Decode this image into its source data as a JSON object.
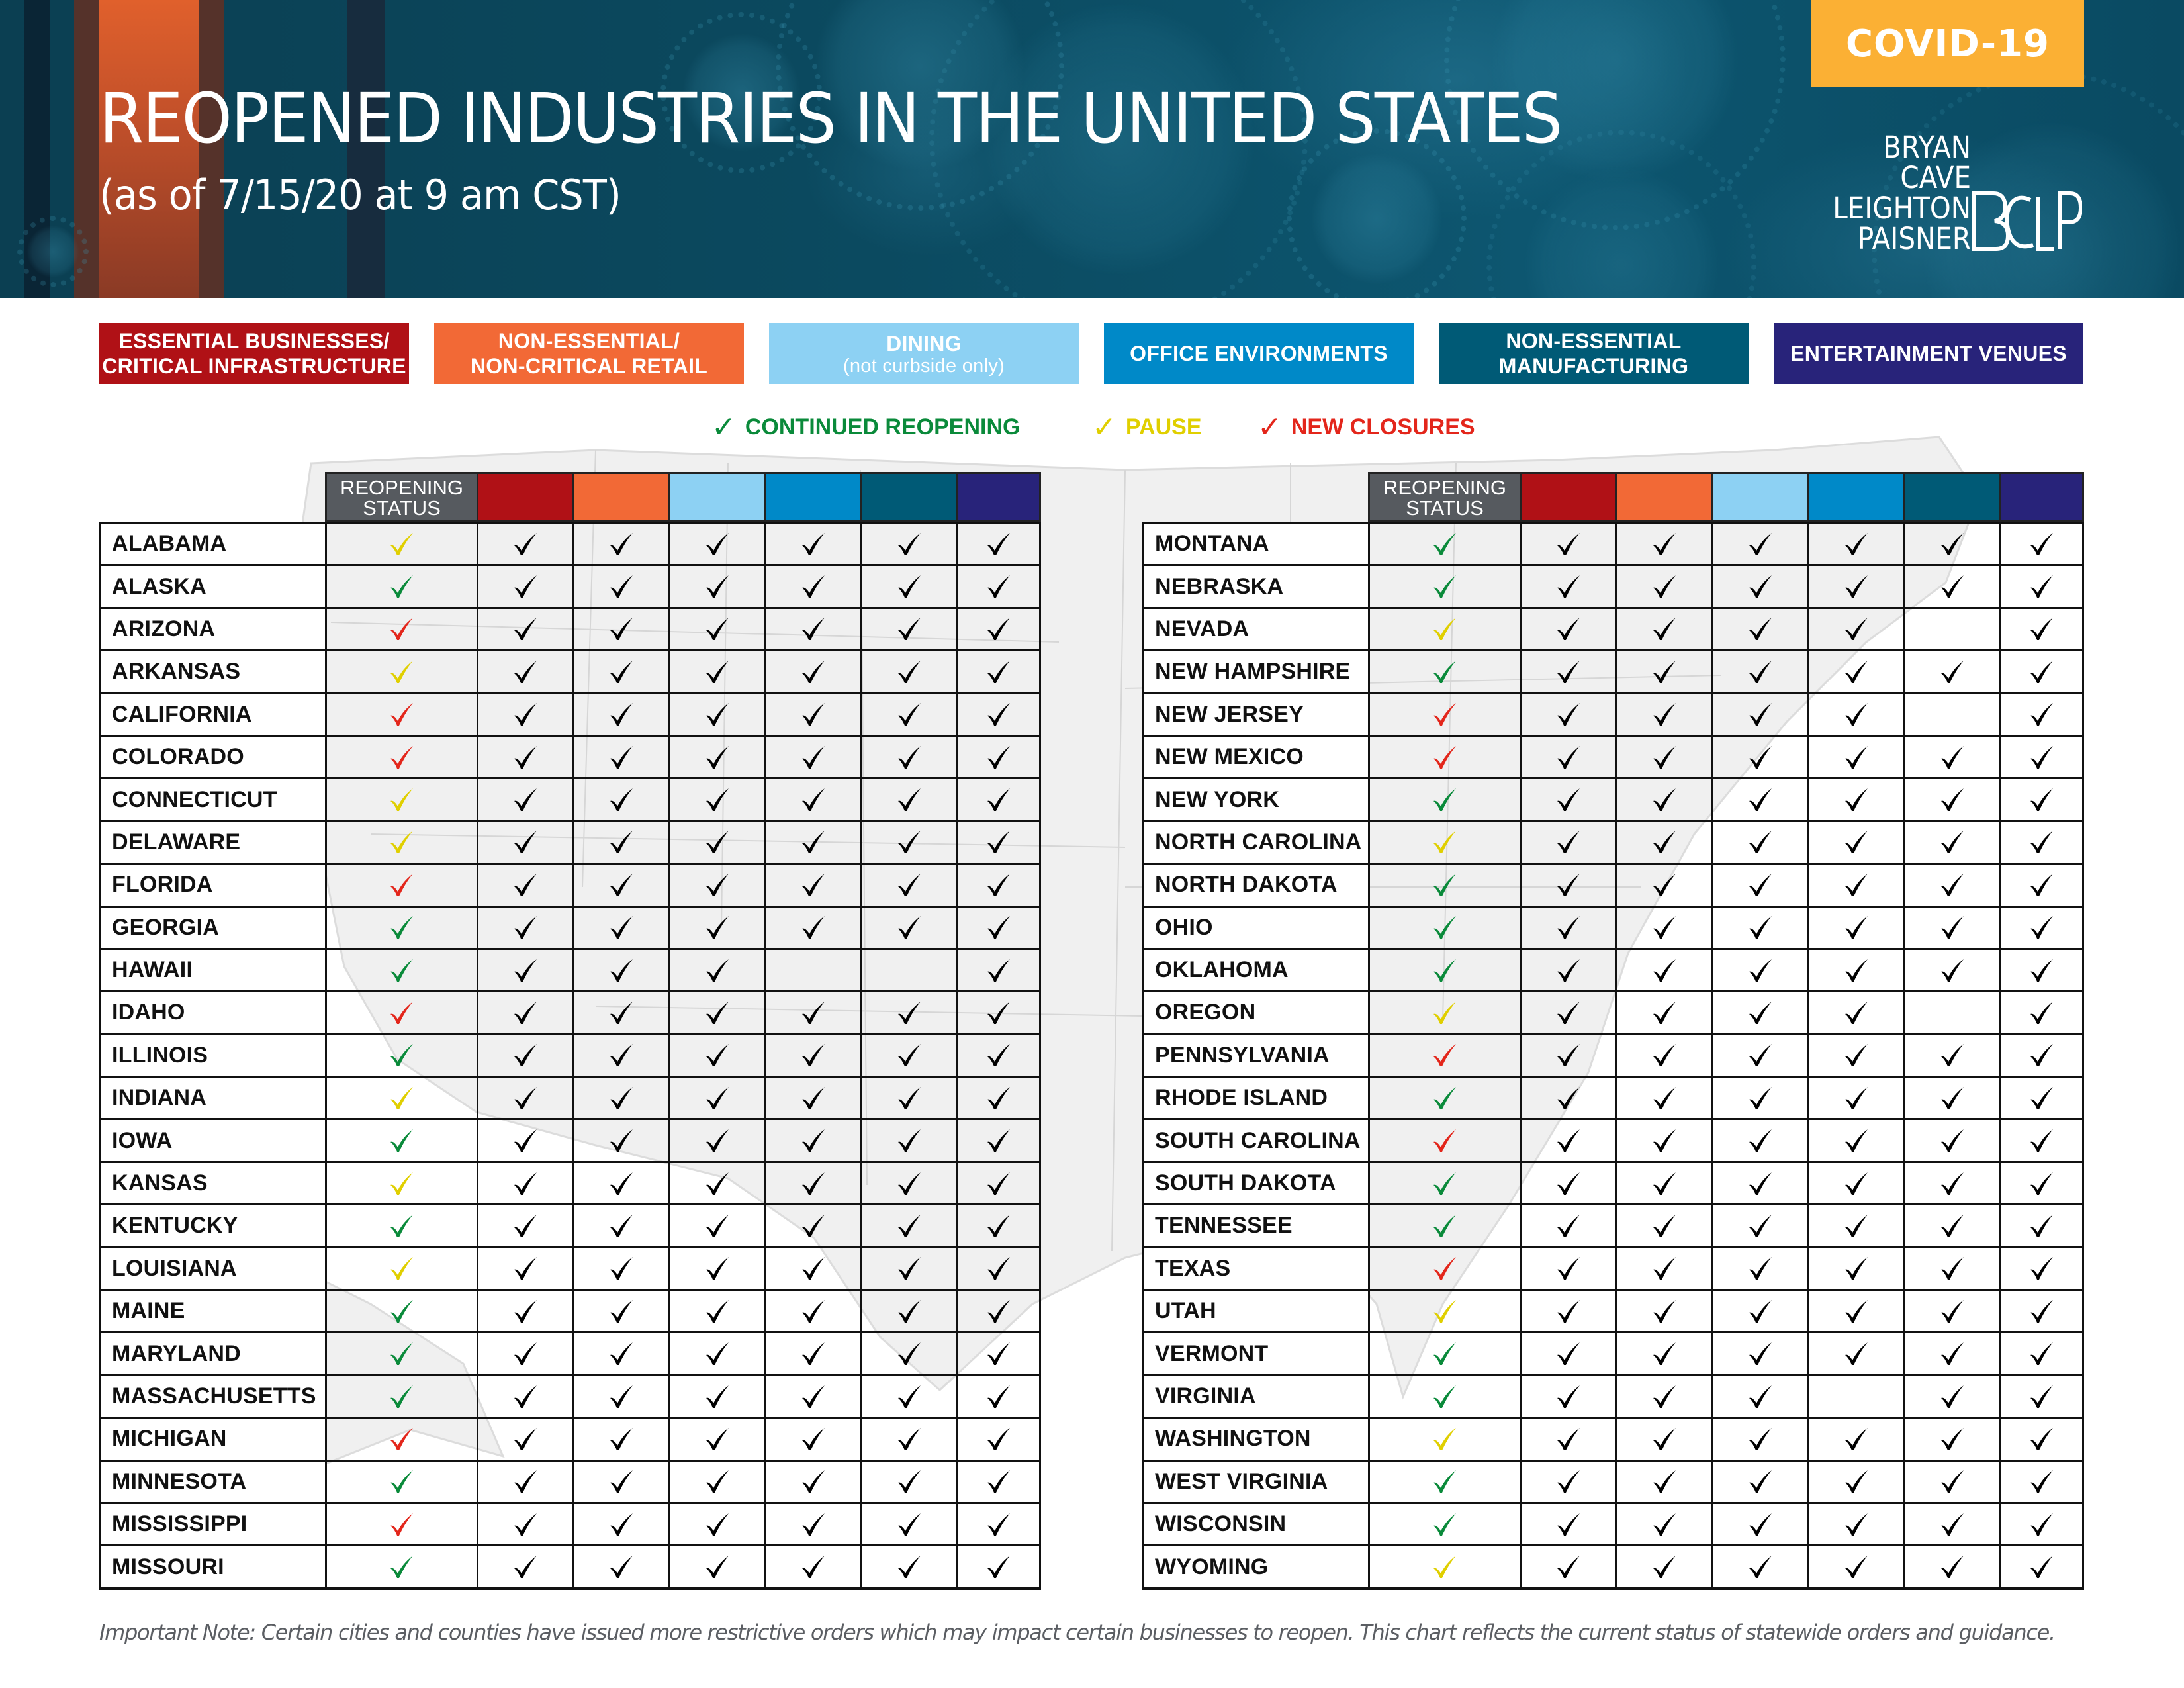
{
  "header": {
    "title": "REOPENED INDUSTRIES IN THE UNITED STATES",
    "subtitle": "(as of 7/15/20 at 9 am CST)",
    "badge": "COVID-19",
    "logo": {
      "lines": [
        "BRYAN",
        "CAVE",
        "LEIGHTON",
        "PAISNER"
      ],
      "monogram": "BCLP"
    }
  },
  "colors": {
    "banner": "#0b4a60",
    "badge": "#fbb034",
    "status_header": "#565a5f",
    "status_green": "#0a8a3a",
    "status_yellow": "#e0cf00",
    "status_red": "#e3261b",
    "check_black": "#000000"
  },
  "categories": [
    {
      "key": "essential",
      "line1": "ESSENTIAL BUSINESSES/",
      "line2": "CRITICAL INFRASTRUCTURE",
      "color": "#b01116"
    },
    {
      "key": "retail",
      "line1": "NON-ESSENTIAL/",
      "line2": "NON-CRITICAL RETAIL",
      "color": "#f26936"
    },
    {
      "key": "dining",
      "line1": "DINING",
      "line2": "(not curbside only)",
      "color": "#8dd1f3"
    },
    {
      "key": "office",
      "line1": "OFFICE ENVIRONMENTS",
      "line2": "",
      "color": "#0089c8"
    },
    {
      "key": "manufacturing",
      "line1": "NON-ESSENTIAL",
      "line2": "MANUFACTURING",
      "color": "#005a76"
    },
    {
      "key": "entertainment",
      "line1": "ENTERTAINMENT VENUES",
      "line2": "",
      "color": "#28237a"
    }
  ],
  "status_legend": [
    {
      "key": "green",
      "label": "CONTINUED REOPENING",
      "color": "#0a8a3a"
    },
    {
      "key": "yellow",
      "label": "PAUSE",
      "color": "#e0cf00"
    },
    {
      "key": "red",
      "label": "NEW CLOSURES",
      "color": "#e3261b"
    }
  ],
  "table": {
    "status_header": "REOPENING STATUS",
    "columns": [
      "essential",
      "retail",
      "dining",
      "office",
      "manufacturing",
      "entertainment"
    ],
    "left": [
      {
        "state": "ALABAMA",
        "status": "yellow",
        "cells": [
          1,
          1,
          1,
          1,
          1,
          1
        ]
      },
      {
        "state": "ALASKA",
        "status": "green",
        "cells": [
          1,
          1,
          1,
          1,
          1,
          1
        ]
      },
      {
        "state": "ARIZONA",
        "status": "red",
        "cells": [
          1,
          1,
          1,
          1,
          1,
          1
        ]
      },
      {
        "state": "ARKANSAS",
        "status": "yellow",
        "cells": [
          1,
          1,
          1,
          1,
          1,
          1
        ]
      },
      {
        "state": "CALIFORNIA",
        "status": "red",
        "cells": [
          1,
          1,
          1,
          1,
          1,
          1
        ]
      },
      {
        "state": "COLORADO",
        "status": "red",
        "cells": [
          1,
          1,
          1,
          1,
          1,
          1
        ]
      },
      {
        "state": "CONNECTICUT",
        "status": "yellow",
        "cells": [
          1,
          1,
          1,
          1,
          1,
          1
        ]
      },
      {
        "state": "DELAWARE",
        "status": "yellow",
        "cells": [
          1,
          1,
          1,
          1,
          1,
          1
        ]
      },
      {
        "state": "FLORIDA",
        "status": "red",
        "cells": [
          1,
          1,
          1,
          1,
          1,
          1
        ]
      },
      {
        "state": "GEORGIA",
        "status": "green",
        "cells": [
          1,
          1,
          1,
          1,
          1,
          1
        ]
      },
      {
        "state": "HAWAII",
        "status": "green",
        "cells": [
          1,
          1,
          1,
          0,
          0,
          1
        ]
      },
      {
        "state": "IDAHO",
        "status": "red",
        "cells": [
          1,
          1,
          1,
          1,
          1,
          1
        ]
      },
      {
        "state": "ILLINOIS",
        "status": "green",
        "cells": [
          1,
          1,
          1,
          1,
          1,
          1
        ]
      },
      {
        "state": "INDIANA",
        "status": "yellow",
        "cells": [
          1,
          1,
          1,
          1,
          1,
          1
        ]
      },
      {
        "state": "IOWA",
        "status": "green",
        "cells": [
          1,
          1,
          1,
          1,
          1,
          1
        ]
      },
      {
        "state": "KANSAS",
        "status": "yellow",
        "cells": [
          1,
          1,
          1,
          1,
          1,
          1
        ]
      },
      {
        "state": "KENTUCKY",
        "status": "green",
        "cells": [
          1,
          1,
          1,
          1,
          1,
          1
        ]
      },
      {
        "state": "LOUISIANA",
        "status": "yellow",
        "cells": [
          1,
          1,
          1,
          1,
          1,
          1
        ]
      },
      {
        "state": "MAINE",
        "status": "green",
        "cells": [
          1,
          1,
          1,
          1,
          1,
          1
        ]
      },
      {
        "state": "MARYLAND",
        "status": "green",
        "cells": [
          1,
          1,
          1,
          1,
          1,
          1
        ]
      },
      {
        "state": "MASSACHUSETTS",
        "status": "green",
        "cells": [
          1,
          1,
          1,
          1,
          1,
          1
        ]
      },
      {
        "state": "MICHIGAN",
        "status": "red",
        "cells": [
          1,
          1,
          1,
          1,
          1,
          1
        ]
      },
      {
        "state": "MINNESOTA",
        "status": "green",
        "cells": [
          1,
          1,
          1,
          1,
          1,
          1
        ]
      },
      {
        "state": "MISSISSIPPI",
        "status": "red",
        "cells": [
          1,
          1,
          1,
          1,
          1,
          1
        ]
      },
      {
        "state": "MISSOURI",
        "status": "green",
        "cells": [
          1,
          1,
          1,
          1,
          1,
          1
        ]
      }
    ],
    "right": [
      {
        "state": "MONTANA",
        "status": "green",
        "cells": [
          1,
          1,
          1,
          1,
          1,
          1
        ]
      },
      {
        "state": "NEBRASKA",
        "status": "green",
        "cells": [
          1,
          1,
          1,
          1,
          1,
          1
        ]
      },
      {
        "state": "NEVADA",
        "status": "yellow",
        "cells": [
          1,
          1,
          1,
          1,
          0,
          1
        ]
      },
      {
        "state": "NEW HAMPSHIRE",
        "status": "green",
        "cells": [
          1,
          1,
          1,
          1,
          1,
          1
        ]
      },
      {
        "state": "NEW JERSEY",
        "status": "red",
        "cells": [
          1,
          1,
          1,
          1,
          0,
          1
        ]
      },
      {
        "state": "NEW MEXICO",
        "status": "red",
        "cells": [
          1,
          1,
          1,
          1,
          1,
          1
        ]
      },
      {
        "state": "NEW YORK",
        "status": "green",
        "cells": [
          1,
          1,
          1,
          1,
          1,
          1
        ]
      },
      {
        "state": "NORTH CAROLINA",
        "status": "yellow",
        "cells": [
          1,
          1,
          1,
          1,
          1,
          1
        ]
      },
      {
        "state": "NORTH DAKOTA",
        "status": "green",
        "cells": [
          1,
          1,
          1,
          1,
          1,
          1
        ]
      },
      {
        "state": "OHIO",
        "status": "green",
        "cells": [
          1,
          1,
          1,
          1,
          1,
          1
        ]
      },
      {
        "state": "OKLAHOMA",
        "status": "green",
        "cells": [
          1,
          1,
          1,
          1,
          1,
          1
        ]
      },
      {
        "state": "OREGON",
        "status": "yellow",
        "cells": [
          1,
          1,
          1,
          1,
          0,
          1
        ]
      },
      {
        "state": "PENNSYLVANIA",
        "status": "red",
        "cells": [
          1,
          1,
          1,
          1,
          1,
          1
        ]
      },
      {
        "state": "RHODE ISLAND",
        "status": "green",
        "cells": [
          1,
          1,
          1,
          1,
          1,
          1
        ]
      },
      {
        "state": "SOUTH CAROLINA",
        "status": "red",
        "cells": [
          1,
          1,
          1,
          1,
          1,
          1
        ]
      },
      {
        "state": "SOUTH DAKOTA",
        "status": "green",
        "cells": [
          1,
          1,
          1,
          1,
          1,
          1
        ]
      },
      {
        "state": "TENNESSEE",
        "status": "green",
        "cells": [
          1,
          1,
          1,
          1,
          1,
          1
        ]
      },
      {
        "state": "TEXAS",
        "status": "red",
        "cells": [
          1,
          1,
          1,
          1,
          1,
          1
        ]
      },
      {
        "state": "UTAH",
        "status": "yellow",
        "cells": [
          1,
          1,
          1,
          1,
          1,
          1
        ]
      },
      {
        "state": "VERMONT",
        "status": "green",
        "cells": [
          1,
          1,
          1,
          1,
          1,
          1
        ]
      },
      {
        "state": "VIRGINIA",
        "status": "green",
        "cells": [
          1,
          1,
          1,
          0,
          1,
          1
        ]
      },
      {
        "state": "WASHINGTON",
        "status": "yellow",
        "cells": [
          1,
          1,
          1,
          1,
          1,
          1
        ]
      },
      {
        "state": "WEST VIRGINIA",
        "status": "green",
        "cells": [
          1,
          1,
          1,
          1,
          1,
          1
        ]
      },
      {
        "state": "WISCONSIN",
        "status": "green",
        "cells": [
          1,
          1,
          1,
          1,
          1,
          1
        ]
      },
      {
        "state": "WYOMING",
        "status": "yellow",
        "cells": [
          1,
          1,
          1,
          1,
          1,
          1
        ]
      }
    ]
  },
  "footnote": "Important Note:  Certain cities and counties have issued more restrictive orders which may impact certain businesses to reopen. This chart reflects the current status of statewide orders and guidance."
}
